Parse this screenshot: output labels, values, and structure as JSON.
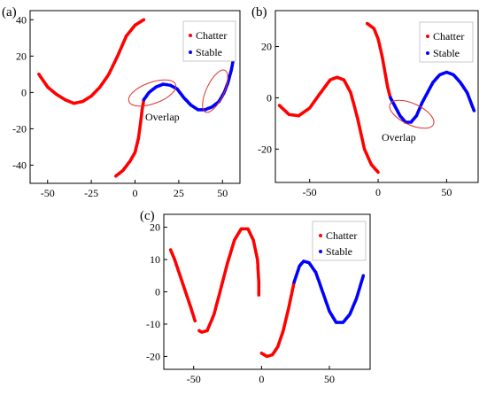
{
  "chart_data": [
    {
      "panel_label": "(a)",
      "type": "scatter",
      "xlim": [
        -60,
        60
      ],
      "ylim": [
        -50,
        45
      ],
      "xticks": [
        -50,
        -25,
        0,
        25,
        50
      ],
      "yticks": [
        -40,
        -20,
        0,
        20,
        40
      ],
      "legend": {
        "position": "top-right",
        "entries": [
          {
            "label": "Chatter",
            "color": "#ff0000"
          },
          {
            "label": "Stable",
            "color": "#0000ff"
          }
        ]
      },
      "segments": [
        {
          "class": "Chatter",
          "points": [
            [
              -55,
              10
            ],
            [
              -50,
              3
            ],
            [
              -45,
              -1
            ],
            [
              -40,
              -4
            ],
            [
              -35,
              -6
            ],
            [
              -30,
              -5
            ],
            [
              -25,
              -2
            ],
            [
              -20,
              3
            ],
            [
              -15,
              10
            ],
            [
              -10,
              20
            ],
            [
              -5,
              31
            ],
            [
              0,
              37
            ],
            [
              5,
              40
            ]
          ]
        },
        {
          "class": "Chatter",
          "points": [
            [
              -11,
              -46
            ],
            [
              -7,
              -43
            ],
            [
              -3,
              -38
            ],
            [
              0,
              -33
            ],
            [
              2,
              -25
            ],
            [
              3,
              -18
            ],
            [
              4,
              -10
            ],
            [
              5,
              -4
            ]
          ]
        },
        {
          "class": "Stable",
          "points": [
            [
              5,
              -4
            ],
            [
              8,
              0
            ],
            [
              12,
              3
            ],
            [
              16,
              4.5
            ],
            [
              20,
              4
            ],
            [
              24,
              2
            ],
            [
              28,
              -3
            ],
            [
              32,
              -7
            ],
            [
              36,
              -9.5
            ],
            [
              40,
              -9.5
            ],
            [
              44,
              -8
            ],
            [
              48,
              -5
            ],
            [
              51,
              0
            ],
            [
              53,
              5
            ],
            [
              55,
              12
            ],
            [
              56,
              17
            ]
          ]
        }
      ],
      "annotations": [
        {
          "text": "Overlap"
        }
      ]
    },
    {
      "panel_label": "(b)",
      "type": "scatter",
      "xlim": [
        -75,
        73
      ],
      "ylim": [
        -33,
        34
      ],
      "xticks": [
        -50,
        0,
        50
      ],
      "yticks": [
        -20,
        0,
        20
      ],
      "legend": {
        "position": "top-right",
        "entries": [
          {
            "label": "Chatter",
            "color": "#ff0000"
          },
          {
            "label": "Stable",
            "color": "#0000ff"
          }
        ]
      },
      "segments": [
        {
          "class": "Chatter",
          "points": [
            [
              -72,
              -3
            ],
            [
              -65,
              -6.5
            ],
            [
              -58,
              -7
            ],
            [
              -50,
              -4
            ],
            [
              -42,
              2
            ],
            [
              -35,
              7
            ],
            [
              -30,
              8
            ],
            [
              -25,
              7
            ],
            [
              -20,
              2
            ],
            [
              -15,
              -8
            ],
            [
              -10,
              -20
            ],
            [
              -5,
              -26
            ],
            [
              0,
              -29
            ]
          ]
        },
        {
          "class": "Chatter",
          "points": [
            [
              -8,
              29
            ],
            [
              -3,
              27
            ],
            [
              0,
              23
            ],
            [
              3,
              16
            ],
            [
              5,
              10
            ],
            [
              7,
              4
            ],
            [
              9,
              0
            ]
          ]
        },
        {
          "class": "Stable",
          "points": [
            [
              9,
              0
            ],
            [
              12,
              -3
            ],
            [
              16,
              -7
            ],
            [
              20,
              -9.5
            ],
            [
              24,
              -9.5
            ],
            [
              28,
              -7
            ],
            [
              32,
              -2
            ],
            [
              36,
              2
            ],
            [
              40,
              6
            ],
            [
              45,
              9
            ],
            [
              50,
              10
            ],
            [
              55,
              9
            ],
            [
              60,
              6
            ],
            [
              65,
              2
            ],
            [
              70,
              -5
            ]
          ]
        }
      ],
      "annotations": [
        {
          "text": "Overlap"
        }
      ]
    },
    {
      "panel_label": "(c)",
      "type": "scatter",
      "xlim": [
        -72,
        80
      ],
      "ylim": [
        -24,
        24
      ],
      "xticks": [
        -50,
        0,
        50
      ],
      "yticks": [
        -20,
        -10,
        0,
        10,
        20
      ],
      "legend": {
        "position": "top-right",
        "entries": [
          {
            "label": "Chatter",
            "color": "#ff0000"
          },
          {
            "label": "Stable",
            "color": "#0000ff"
          }
        ]
      },
      "segments": [
        {
          "class": "Chatter",
          "points": [
            [
              -67,
              13
            ],
            [
              -64,
              10
            ],
            [
              -60,
              5
            ],
            [
              -56,
              0
            ],
            [
              -52,
              -5
            ],
            [
              -49,
              -9
            ]
          ]
        },
        {
          "class": "Chatter",
          "points": [
            [
              -46,
              -12
            ],
            [
              -44,
              -12.5
            ],
            [
              -40,
              -12
            ],
            [
              -35,
              -7
            ],
            [
              -30,
              1
            ],
            [
              -25,
              9
            ],
            [
              -20,
              16
            ],
            [
              -15,
              19.5
            ],
            [
              -10,
              19.5
            ],
            [
              -6,
              16
            ],
            [
              -3,
              10
            ],
            [
              -2,
              3
            ],
            [
              -2,
              -1
            ]
          ]
        },
        {
          "class": "Chatter",
          "points": [
            [
              0,
              -19
            ],
            [
              4,
              -20
            ],
            [
              8,
              -19.5
            ],
            [
              12,
              -17
            ],
            [
              16,
              -12
            ],
            [
              20,
              -5
            ],
            [
              24,
              3
            ]
          ]
        },
        {
          "class": "Stable",
          "points": [
            [
              24,
              3
            ],
            [
              28,
              8
            ],
            [
              31,
              9.5
            ],
            [
              35,
              9
            ],
            [
              40,
              6
            ],
            [
              45,
              0
            ],
            [
              50,
              -6
            ],
            [
              55,
              -9.5
            ],
            [
              60,
              -9.5
            ],
            [
              65,
              -7
            ],
            [
              70,
              -2
            ],
            [
              75,
              5
            ]
          ]
        }
      ],
      "annotations": []
    }
  ]
}
